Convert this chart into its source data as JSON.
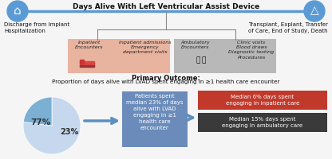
{
  "title_top": "Days Alive With Left Ventricular Assist Device",
  "left_label": "Discharge from Implant\nHospitalization",
  "right_label": "Transplant, Explant, Transfer\nof Care, End of Study, Death",
  "inpatient_box_color": "#e8b4a0",
  "ambulatory_box_color": "#b8b8b8",
  "inpatient_title": "Inpatient\nEncounters",
  "inpatient_desc": "Inpatient admissions\nEmergency\ndepartment visits",
  "ambulatory_title": "Ambulatory\nEncounters",
  "ambulatory_desc": "Clinic visits\nBlood draws\nDiagnostic testing\nProcedures",
  "primary_outcome_bold": "Primary Outcome:",
  "primary_outcome_text": "Proportion of days alive with LVAD spent engaging in ≥1 health care encounter",
  "pie_colors": [
    "#c5d8ee",
    "#7bafd4"
  ],
  "pie_values": [
    77,
    23
  ],
  "pie_labels_77": "77%",
  "pie_labels_23": "23%",
  "center_box_color": "#6b8cba",
  "center_box_text": "Patients spent\nmedian 23% of days\nalive with LVAD\nengaging in ≥1\nhealth care\nencounter",
  "red_box_color": "#c0392b",
  "red_box_text": "Median 6% days spent\nengaging in inpatient care",
  "dark_box_color": "#3a3a3a",
  "dark_box_text": "Median 15% days spent\nengaging in ambulatory care",
  "arrow_color": "#5b8fc0",
  "icon_circle_color": "#5b9bd5",
  "line_color": "#5b9bd5",
  "bracket_color": "#888888",
  "bg_color": "#f5f5f5"
}
